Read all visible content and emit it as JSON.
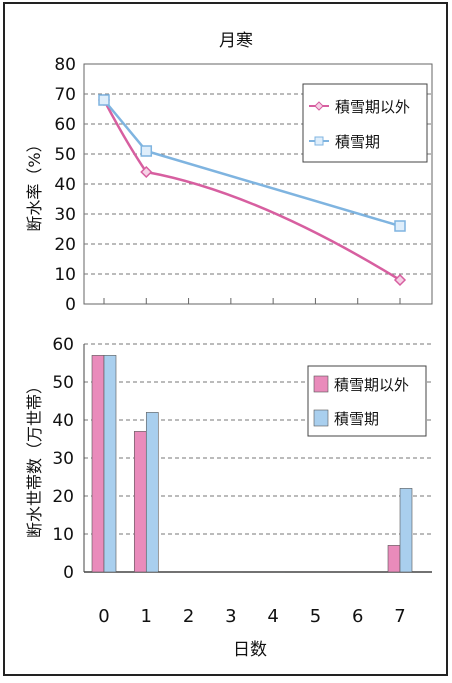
{
  "title": "月寒",
  "x_axis_label": "日数",
  "colors": {
    "pink": "#e98bbb",
    "blue": "#a9cfee",
    "pink_line": "#d75fa0",
    "blue_line": "#7fb4e0",
    "grid": "#777777"
  },
  "chart_data": [
    {
      "type": "line",
      "title": "月寒",
      "ylabel": "断水率（%）",
      "ylim": [
        0,
        80
      ],
      "yticks": [
        0,
        10,
        20,
        30,
        40,
        50,
        60,
        70,
        80
      ],
      "xlim": [
        0,
        7
      ],
      "grid": true,
      "legend_position": "top-right",
      "series": [
        {
          "name": "積雪期以外",
          "x": [
            0,
            1,
            7
          ],
          "values": [
            68,
            44,
            8
          ],
          "color": "#d75fa0",
          "marker": "diamond"
        },
        {
          "name": "積雪期",
          "x": [
            0,
            1,
            7
          ],
          "values": [
            68,
            51,
            26
          ],
          "color": "#7fb4e0",
          "marker": "square"
        }
      ]
    },
    {
      "type": "bar",
      "ylabel": "断水世帯数（万世帯）",
      "xlabel": "日数",
      "categories": [
        "0",
        "1",
        "2",
        "3",
        "4",
        "5",
        "6",
        "7"
      ],
      "ylim": [
        0,
        60
      ],
      "yticks": [
        0,
        10,
        20,
        30,
        40,
        50,
        60
      ],
      "grid": true,
      "legend_position": "top-right",
      "series": [
        {
          "name": "積雪期以外",
          "values": [
            57,
            37,
            0,
            0,
            0,
            0,
            0,
            7
          ],
          "color": "#e98bbb"
        },
        {
          "name": "積雪期",
          "values": [
            57,
            42,
            0,
            0,
            0,
            0,
            0,
            22
          ],
          "color": "#a9cfee"
        }
      ]
    }
  ]
}
